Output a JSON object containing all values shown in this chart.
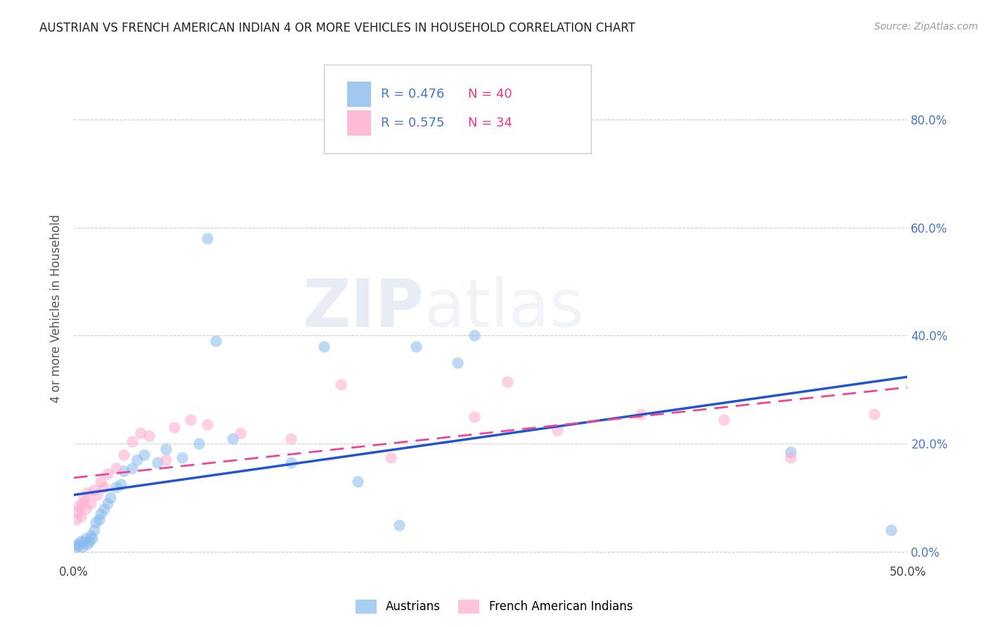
{
  "title": "AUSTRIAN VS FRENCH AMERICAN INDIAN 4 OR MORE VEHICLES IN HOUSEHOLD CORRELATION CHART",
  "source": "Source: ZipAtlas.com",
  "ylabel": "4 or more Vehicles in Household",
  "xlim": [
    0.0,
    0.5
  ],
  "ylim": [
    -0.02,
    0.92
  ],
  "xticks": [
    0.0,
    0.1,
    0.2,
    0.3,
    0.4,
    0.5
  ],
  "xtick_labels": [
    "0.0%",
    "",
    "",
    "",
    "",
    "50.0%"
  ],
  "yticks": [
    0.0,
    0.2,
    0.4,
    0.6,
    0.8
  ],
  "ytick_labels": [
    "0.0%",
    "20.0%",
    "40.0%",
    "60.0%",
    "80.0%"
  ],
  "legend_label_blue": "Austrians",
  "legend_label_pink": "French American Indians",
  "blue_color": "#88bbee",
  "pink_color": "#ffaacc",
  "line_blue_color": "#2255cc",
  "line_pink_color": "#ee4499",
  "watermark_zip": "ZIP",
  "watermark_atlas": "atlas",
  "austrians_x": [
    0.001,
    0.002,
    0.003,
    0.004,
    0.005,
    0.006,
    0.007,
    0.008,
    0.009,
    0.01,
    0.011,
    0.012,
    0.013,
    0.015,
    0.016,
    0.018,
    0.02,
    0.022,
    0.025,
    0.028,
    0.03,
    0.035,
    0.038,
    0.042,
    0.05,
    0.055,
    0.065,
    0.075,
    0.08,
    0.085,
    0.095,
    0.13,
    0.15,
    0.17,
    0.195,
    0.205,
    0.23,
    0.24,
    0.43,
    0.49
  ],
  "austrians_y": [
    0.01,
    0.015,
    0.012,
    0.02,
    0.01,
    0.018,
    0.025,
    0.015,
    0.02,
    0.03,
    0.025,
    0.04,
    0.055,
    0.06,
    0.07,
    0.08,
    0.09,
    0.1,
    0.12,
    0.125,
    0.15,
    0.155,
    0.17,
    0.18,
    0.165,
    0.19,
    0.175,
    0.2,
    0.58,
    0.39,
    0.21,
    0.165,
    0.38,
    0.13,
    0.05,
    0.38,
    0.35,
    0.4,
    0.185,
    0.04
  ],
  "french_x": [
    0.001,
    0.002,
    0.003,
    0.004,
    0.005,
    0.006,
    0.007,
    0.008,
    0.01,
    0.012,
    0.014,
    0.016,
    0.018,
    0.02,
    0.025,
    0.03,
    0.035,
    0.04,
    0.045,
    0.055,
    0.06,
    0.07,
    0.08,
    0.1,
    0.13,
    0.16,
    0.19,
    0.24,
    0.26,
    0.29,
    0.34,
    0.39,
    0.43,
    0.48
  ],
  "french_y": [
    0.06,
    0.075,
    0.085,
    0.065,
    0.09,
    0.1,
    0.08,
    0.11,
    0.09,
    0.115,
    0.105,
    0.13,
    0.12,
    0.145,
    0.155,
    0.18,
    0.205,
    0.22,
    0.215,
    0.17,
    0.23,
    0.245,
    0.235,
    0.22,
    0.21,
    0.31,
    0.175,
    0.25,
    0.315,
    0.225,
    0.255,
    0.245,
    0.175,
    0.255
  ]
}
